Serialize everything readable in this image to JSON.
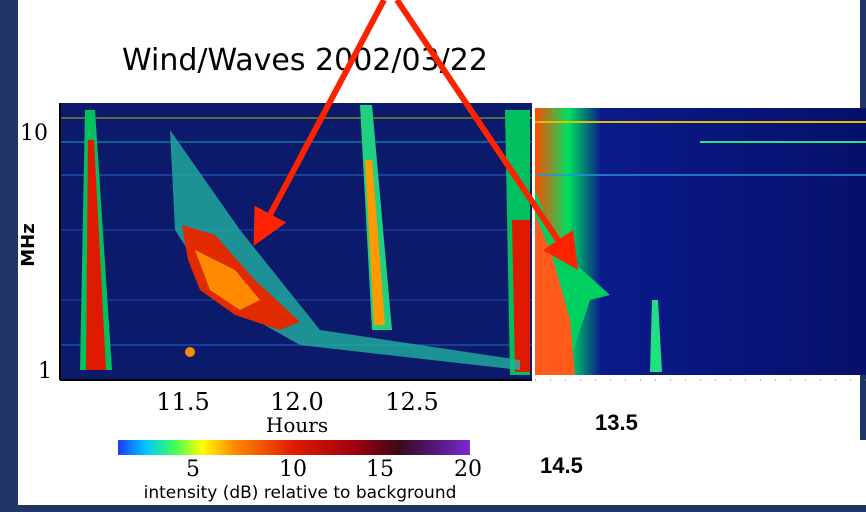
{
  "left_panel": {
    "title": "Wind/Waves 2002/03/22",
    "y_axis": {
      "label": "MHz",
      "ticks": [
        "10",
        "1"
      ]
    },
    "x_axis": {
      "label": "Hours",
      "ticks": [
        "11.5",
        "12.0",
        "12.5"
      ]
    },
    "colorbar": {
      "ticks": [
        "5",
        "10",
        "15",
        "20"
      ],
      "label": "intensity (dB) relative to background"
    }
  },
  "right_panel": {
    "labels": [
      "13.5",
      "14.5"
    ]
  }
}
